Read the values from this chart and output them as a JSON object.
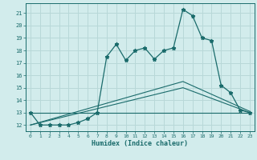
{
  "bg_color": "#d2ecec",
  "grid_color": "#b8d8d8",
  "line_color": "#1a6b6b",
  "xlabel": "Humidex (Indice chaleur)",
  "xlim": [
    -0.5,
    23.5
  ],
  "ylim": [
    11.5,
    21.8
  ],
  "yticks": [
    12,
    13,
    14,
    15,
    16,
    17,
    18,
    19,
    20,
    21
  ],
  "xticks": [
    0,
    1,
    2,
    3,
    4,
    5,
    6,
    7,
    8,
    9,
    10,
    11,
    12,
    13,
    14,
    15,
    16,
    17,
    18,
    19,
    20,
    21,
    22,
    23
  ],
  "main_x": [
    0,
    1,
    2,
    3,
    4,
    5,
    6,
    7,
    8,
    9,
    10,
    11,
    12,
    13,
    14,
    15,
    16,
    17,
    18,
    19,
    20,
    21,
    22,
    23
  ],
  "main_y": [
    13,
    12,
    12,
    12,
    12,
    12.2,
    12.5,
    13.0,
    17.5,
    18.5,
    17.2,
    18.0,
    18.2,
    17.3,
    18.0,
    18.2,
    21.3,
    20.8,
    19.0,
    18.8,
    15.2,
    14.6,
    13.2,
    13.0
  ],
  "line1_x": [
    0,
    23
  ],
  "line1_y": [
    13.0,
    13.0
  ],
  "line2_x": [
    0,
    16,
    23
  ],
  "line2_y": [
    12.0,
    15.0,
    13.0
  ],
  "line3_x": [
    0,
    16,
    23
  ],
  "line3_y": [
    12.0,
    15.5,
    13.1
  ]
}
